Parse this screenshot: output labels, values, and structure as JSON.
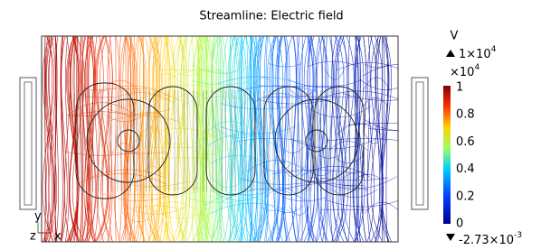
{
  "title": "Streamline: Electric field",
  "colorbar": {
    "unit": "V",
    "max": {
      "base": "1×10",
      "exponent": "4"
    },
    "multiplier": {
      "base": "×10",
      "exponent": "4"
    },
    "ticks": [
      "1",
      "0.8",
      "0.6",
      "0.4",
      "0.2",
      "0"
    ],
    "min": {
      "base": "-2.73×10",
      "exponent": "-3"
    }
  },
  "axes": {
    "y": "y",
    "z": "z",
    "x": "x"
  }
}
